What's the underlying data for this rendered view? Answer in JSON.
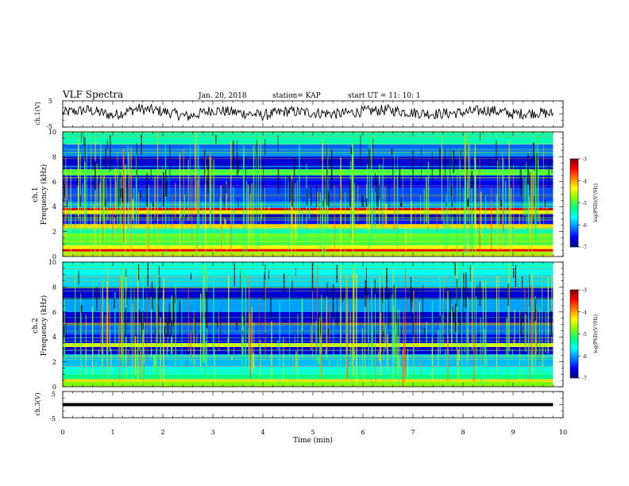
{
  "header": {
    "title": "VLF Spectra",
    "date": "Jan. 20, 2018",
    "station": "station= KAP",
    "start": "start UT =  11: 10: 1"
  },
  "panels": {
    "ch1_wave": {
      "ylabel": "ch.1(V)",
      "yticks": [
        "5",
        "-5"
      ]
    },
    "ch1_spec": {
      "ylabel_top": "ch.1",
      "ylabel": "Frequency (kHz)",
      "yticks": [
        "10",
        "8",
        "6",
        "4",
        "2",
        "0"
      ]
    },
    "ch2_spec": {
      "ylabel_top": "ch.2",
      "ylabel": "Frequency (kHz)",
      "yticks": [
        "10",
        "8",
        "6",
        "4",
        "2",
        "0"
      ]
    },
    "ch3_wave": {
      "ylabel": "ch.3(V)",
      "yticks": [
        "5",
        "-5"
      ]
    }
  },
  "colorbar": {
    "label": "log(PSD)(V²/Hz)",
    "ticks": [
      "-3",
      "-4",
      "-5",
      "-6",
      "-7"
    ],
    "stops": [
      "#000080",
      "#0000ff",
      "#0080ff",
      "#00ffff",
      "#00ff80",
      "#80ff00",
      "#ffff00",
      "#ff8000",
      "#ff0000",
      "#800000"
    ]
  },
  "xaxis": {
    "label": "Time (min)",
    "ticks": [
      "0",
      "1",
      "2",
      "3",
      "4",
      "5",
      "6",
      "7",
      "8",
      "9",
      "10"
    ]
  },
  "chart_data": [
    {
      "type": "line",
      "name": "ch.1 waveform",
      "ylabel": "ch.1(V)",
      "xlabel": "Time (min)",
      "xlim": [
        0,
        10
      ],
      "ylim": [
        -5,
        5
      ],
      "x": [
        0,
        0.5,
        1,
        1.5,
        2,
        2.5,
        3,
        3.5,
        4,
        4.5,
        5,
        5.5,
        6,
        6.5,
        7,
        7.5,
        8,
        8.5,
        9,
        9.5,
        9.8
      ],
      "values": [
        0.5,
        1.5,
        -0.5,
        2.0,
        1.0,
        -1.0,
        1.5,
        0.5,
        -0.5,
        1.0,
        0.5,
        0.0,
        1.0,
        1.5,
        0.5,
        0.0,
        0.5,
        1.5,
        0.0,
        0.5,
        0.0
      ]
    },
    {
      "type": "heatmap",
      "name": "ch.1 spectrogram",
      "ylabel": "Frequency (kHz)",
      "xlabel": "Time (min)",
      "xlim": [
        0,
        9.8
      ],
      "ylim": [
        0,
        10
      ],
      "color_scale": [
        -7,
        -3
      ],
      "color_label": "log(PSD)(V²/Hz)",
      "bands": [
        {
          "f": [
            0.0,
            0.4
          ],
          "level": -4.6
        },
        {
          "f": [
            0.4,
            0.6
          ],
          "level": -3.4
        },
        {
          "f": [
            0.6,
            0.9
          ],
          "level": -4.4
        },
        {
          "f": [
            0.9,
            1.5
          ],
          "level": -5.0
        },
        {
          "f": [
            1.5,
            1.8
          ],
          "level": -4.8
        },
        {
          "f": [
            1.8,
            2.2
          ],
          "level": -5.4
        },
        {
          "f": [
            2.2,
            2.6
          ],
          "level": -4.2
        },
        {
          "f": [
            2.6,
            3.0
          ],
          "level": -6.5
        },
        {
          "f": [
            3.0,
            3.4
          ],
          "level": -6.8
        },
        {
          "f": [
            3.4,
            3.7
          ],
          "level": -4.4
        },
        {
          "f": [
            3.7,
            3.9
          ],
          "level": -3.3
        },
        {
          "f": [
            3.9,
            4.4
          ],
          "level": -6.0
        },
        {
          "f": [
            4.4,
            5.5
          ],
          "level": -6.3
        },
        {
          "f": [
            5.5,
            6.5
          ],
          "level": -6.6
        },
        {
          "f": [
            6.5,
            7.0
          ],
          "level": -5.0
        },
        {
          "f": [
            7.0,
            8.0
          ],
          "level": -6.7
        },
        {
          "f": [
            8.0,
            9.0
          ],
          "level": -6.2
        },
        {
          "f": [
            9.0,
            10.0
          ],
          "level": -5.4
        }
      ]
    },
    {
      "type": "heatmap",
      "name": "ch.2 spectrogram",
      "ylabel": "Frequency (kHz)",
      "xlabel": "Time (min)",
      "xlim": [
        0,
        9.8
      ],
      "ylim": [
        0,
        10
      ],
      "color_scale": [
        -7,
        -3
      ],
      "color_label": "log(PSD)(V²/Hz)",
      "bands": [
        {
          "f": [
            0.0,
            0.4
          ],
          "level": -4.8
        },
        {
          "f": [
            0.4,
            0.6
          ],
          "level": -4.2
        },
        {
          "f": [
            0.6,
            1.0
          ],
          "level": -5.2
        },
        {
          "f": [
            1.0,
            1.6
          ],
          "level": -5.6
        },
        {
          "f": [
            1.6,
            2.6
          ],
          "level": -5.9
        },
        {
          "f": [
            2.6,
            3.2
          ],
          "level": -6.7
        },
        {
          "f": [
            3.2,
            3.5
          ],
          "level": -4.4
        },
        {
          "f": [
            3.5,
            4.2
          ],
          "level": -6.6
        },
        {
          "f": [
            4.2,
            5.0
          ],
          "level": -6.2
        },
        {
          "f": [
            5.0,
            6.0
          ],
          "level": -6.7
        },
        {
          "f": [
            6.0,
            7.0
          ],
          "level": -6.0
        },
        {
          "f": [
            7.0,
            8.0
          ],
          "level": -6.7
        },
        {
          "f": [
            8.0,
            9.0
          ],
          "level": -5.8
        },
        {
          "f": [
            9.0,
            10.0
          ],
          "level": -5.6
        }
      ]
    },
    {
      "type": "line",
      "name": "ch.3 waveform",
      "ylabel": "ch.3(V)",
      "xlabel": "Time (min)",
      "xlim": [
        0,
        10
      ],
      "ylim": [
        -5,
        5
      ],
      "x": [
        0,
        9.8
      ],
      "values": [
        0,
        0
      ]
    }
  ]
}
